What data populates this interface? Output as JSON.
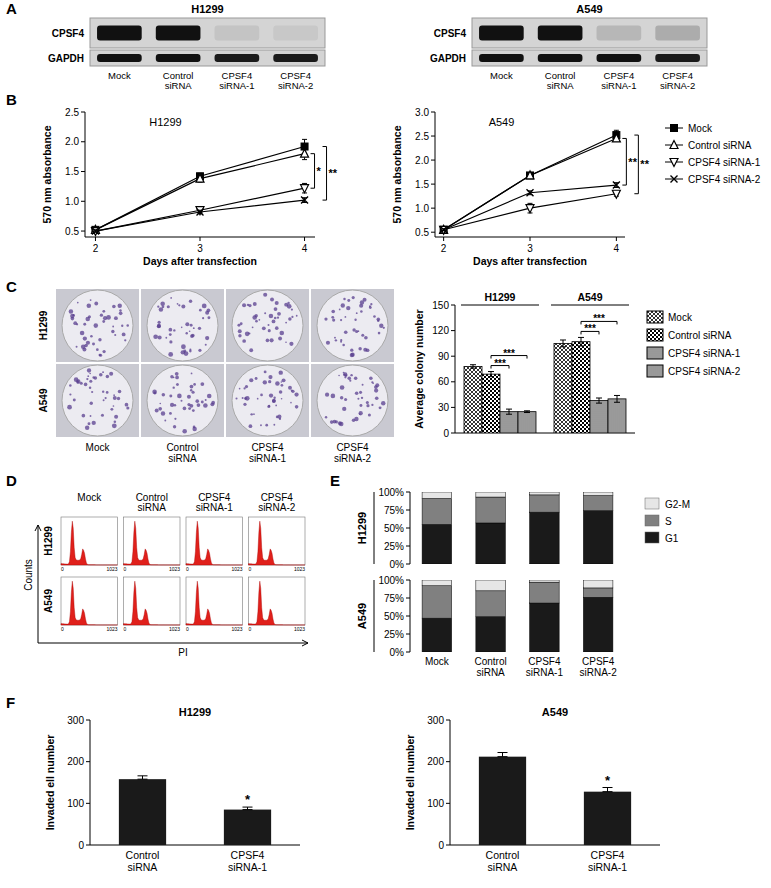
{
  "panel_labels": [
    "A",
    "B",
    "C",
    "D",
    "E",
    "F"
  ],
  "chart_data": [
    {
      "type": "blot",
      "title": "H1299",
      "categories": [
        "Mock",
        "Control siRNA",
        "CPSF4 siRNA-1",
        "CPSF4 siRNA-2"
      ],
      "series": [
        {
          "name": "CPSF4",
          "values": [
            1,
            1,
            0.08,
            0.06
          ]
        },
        {
          "name": "GAPDH",
          "values": [
            1,
            1,
            0.95,
            0.95
          ]
        }
      ]
    },
    {
      "type": "blot",
      "title": "A549",
      "categories": [
        "Mock",
        "Control siRNA",
        "CPSF4 siRNA-1",
        "CPSF4 siRNA-2"
      ],
      "series": [
        {
          "name": "CPSF4",
          "values": [
            1,
            1,
            0.15,
            0.2
          ]
        },
        {
          "name": "GAPDH",
          "values": [
            1,
            1,
            1,
            0.95
          ]
        }
      ]
    },
    {
      "type": "line",
      "title": "H1299",
      "x_label": "Days after transfection",
      "y_label": "570 nm absorbance",
      "x": [
        2,
        3,
        4
      ],
      "xlim": [
        1.9,
        4.1
      ],
      "xticks": [
        2,
        3,
        4
      ],
      "ylim": [
        0.4,
        2.5
      ],
      "yticks": [
        0.5,
        {
          "value": 1,
          "label": "1.0"
        },
        1.5,
        {
          "value": 2,
          "label": "2.0"
        },
        2.5
      ],
      "series": [
        {
          "name": "Mock",
          "color": "#000000",
          "marker": "square",
          "values": [
            0.52,
            1.42,
            1.92
          ],
          "errors": [
            0.02,
            0.05,
            0.12
          ]
        },
        {
          "name": "Control siRNA",
          "color": "#000000",
          "marker": "triangle",
          "values": [
            0.52,
            1.38,
            1.8
          ],
          "errors": [
            0.02,
            0.06,
            0.1
          ]
        },
        {
          "name": "CPSF4 siRNA-1",
          "color": "#000000",
          "marker": "triangle-down",
          "values": [
            0.5,
            0.85,
            1.22
          ],
          "errors": [
            0.02,
            0.04,
            0.08
          ]
        },
        {
          "name": "CPSF4 siRNA-2",
          "color": "#000000",
          "marker": "x",
          "values": [
            0.5,
            0.82,
            1.02
          ],
          "errors": [
            0.02,
            0.03,
            0.04
          ]
        }
      ],
      "annotations": [
        {
          "text": "*",
          "from": "Control siRNA",
          "to": "CPSF4 siRNA-1"
        },
        {
          "text": "**",
          "from": "Mock",
          "to": "CPSF4 siRNA-2"
        }
      ]
    },
    {
      "type": "line",
      "title": "A549",
      "x_label": "Days after transfection",
      "y_label": "570 nm absorbance",
      "x": [
        2,
        3,
        4
      ],
      "xlim": [
        1.9,
        4.1
      ],
      "xticks": [
        2,
        3,
        4
      ],
      "ylim": [
        0.4,
        3.0
      ],
      "yticks": [
        0.5,
        {
          "value": 1,
          "label": "1.0"
        },
        1.5,
        {
          "value": 2,
          "label": "2.0"
        },
        2.5,
        {
          "value": 3,
          "label": "3.0"
        }
      ],
      "legend": "right",
      "series": [
        {
          "name": "Mock",
          "color": "#000000",
          "marker": "square",
          "values": [
            0.55,
            1.68,
            2.52
          ],
          "errors": [
            0.02,
            0.04,
            0.1
          ]
        },
        {
          "name": "Control siRNA",
          "color": "#000000",
          "marker": "triangle",
          "values": [
            0.55,
            1.68,
            2.45
          ],
          "errors": [
            0.02,
            0.03,
            0.06
          ]
        },
        {
          "name": "CPSF4 siRNA-1",
          "color": "#000000",
          "marker": "triangle-down",
          "values": [
            0.55,
            1.0,
            1.3
          ],
          "errors": [
            0.02,
            0.1,
            0.05
          ]
        },
        {
          "name": "CPSF4 siRNA-2",
          "color": "#000000",
          "marker": "x",
          "values": [
            0.55,
            1.32,
            1.48
          ],
          "errors": [
            0.02,
            0.04,
            0.05
          ]
        }
      ],
      "annotations": [
        {
          "text": "**",
          "from": "Control siRNA",
          "to": "CPSF4 siRNA-2"
        },
        {
          "text": "**",
          "from": "Mock",
          "to": "CPSF4 siRNA-1"
        }
      ]
    },
    {
      "type": "image",
      "rows": [
        "H1299",
        "A549"
      ],
      "categories": [
        "Mock",
        "Control siRNA",
        "CPSF4 siRNA-1",
        "CPSF4 siRNA-2"
      ]
    },
    {
      "type": "bar",
      "y_label": "Average colony number",
      "categories": [
        "H1299",
        "A549"
      ],
      "ylim": [
        0,
        150
      ],
      "yticks": [
        0,
        30,
        60,
        90,
        120,
        150
      ],
      "legend": "right",
      "series": [
        {
          "name": "Mock",
          "color": "#000000",
          "values": [
            78,
            105
          ],
          "errors": [
            2,
            4
          ]
        },
        {
          "name": "Control siRNA",
          "color": "#000000",
          "values": [
            69,
            107
          ],
          "errors": [
            3,
            5
          ]
        },
        {
          "name": "CPSF4 siRNA-1",
          "color": "#000000",
          "values": [
            25,
            38
          ],
          "errors": [
            3,
            3
          ]
        },
        {
          "name": "CPSF4 siRNA-2",
          "color": "#000000",
          "values": [
            25,
            40
          ],
          "errors": [
            1,
            4
          ]
        }
      ],
      "annotations": [
        {
          "text": "***",
          "category": "H1299",
          "from": "Control siRNA",
          "to": "CPSF4 siRNA-1"
        },
        {
          "text": "***",
          "category": "H1299",
          "from": "Control siRNA",
          "to": "CPSF4 siRNA-2"
        },
        {
          "text": "***",
          "category": "A549",
          "from": "Control siRNA",
          "to": "CPSF4 siRNA-1"
        },
        {
          "text": "***",
          "category": "A549",
          "from": "Control siRNA",
          "to": "CPSF4 siRNA-2"
        }
      ]
    },
    {
      "type": "flow_histogram",
      "rows": [
        "H1299",
        "A549"
      ],
      "categories": [
        "Mock",
        "Control siRNA",
        "CPSF4 siRNA-1",
        "CPSF4 siRNA-2"
      ],
      "x_label": "PI",
      "y_label": "Counts",
      "xlim": [
        0,
        1023
      ],
      "xticks": [
        0,
        1023
      ]
    },
    {
      "type": "bar",
      "stacked": true,
      "title": "H1299",
      "categories": [
        "Mock",
        "Control siRNA",
        "CPSF4 siRNA-1",
        "CPSF4 siRNA-2"
      ],
      "ylim": [
        0,
        100
      ],
      "yticks": [
        {
          "value": 0,
          "label": "0%"
        },
        {
          "value": 25,
          "label": "25%"
        },
        {
          "value": 50,
          "label": "50%"
        },
        {
          "value": 75,
          "label": "75%"
        },
        {
          "value": 100,
          "label": "100%"
        }
      ],
      "tick_labels": "y",
      "legend": "right",
      "series": [
        {
          "name": "G1",
          "color": "#1a1a1a",
          "values": [
            55,
            57,
            72,
            74
          ]
        },
        {
          "name": "S",
          "color": "#808080",
          "values": [
            36,
            36,
            24,
            21
          ]
        },
        {
          "name": "G2-M",
          "color": "#e6e6e6",
          "values": [
            9,
            7,
            4,
            5
          ]
        }
      ]
    },
    {
      "type": "bar",
      "stacked": true,
      "title": "A549",
      "categories": [
        "Mock",
        "Control siRNA",
        "CPSF4 siRNA-1",
        "CPSF4 siRNA-2"
      ],
      "ylim": [
        0,
        100
      ],
      "yticks": [
        {
          "value": 0,
          "label": "0%"
        },
        {
          "value": 25,
          "label": "25%"
        },
        {
          "value": 50,
          "label": "50%"
        },
        {
          "value": 75,
          "label": "75%"
        },
        {
          "value": 100,
          "label": "100%"
        }
      ],
      "series": [
        {
          "name": "G1",
          "color": "#1a1a1a",
          "values": [
            47,
            49,
            68,
            76
          ]
        },
        {
          "name": "S",
          "color": "#808080",
          "values": [
            45,
            36,
            29,
            13
          ]
        },
        {
          "name": "G2-M",
          "color": "#e6e6e6",
          "values": [
            8,
            15,
            3,
            11
          ]
        }
      ]
    },
    {
      "type": "bar",
      "title": "H1299",
      "y_label": "Invaded ell number",
      "categories": [
        "Control siRNA",
        "CPSF4 siRNA-1"
      ],
      "ylim": [
        0,
        300
      ],
      "yticks": [
        0,
        100,
        200,
        300
      ],
      "color": "#1a1a1a",
      "values": [
        158,
        85
      ],
      "errors": [
        8,
        6
      ],
      "annotations": [
        {
          "text": "*",
          "category": "CPSF4 siRNA-1"
        }
      ]
    },
    {
      "type": "bar",
      "title": "A549",
      "y_label": "Invaded ell number",
      "categories": [
        "Control siRNA",
        "CPSF4 siRNA-1"
      ],
      "ylim": [
        0,
        300
      ],
      "yticks": [
        0,
        100,
        200,
        300
      ],
      "color": "#1a1a1a",
      "values": [
        212,
        128
      ],
      "errors": [
        10,
        10
      ],
      "annotations": [
        {
          "text": "*",
          "category": "CPSF4 siRNA-1"
        }
      ]
    }
  ]
}
